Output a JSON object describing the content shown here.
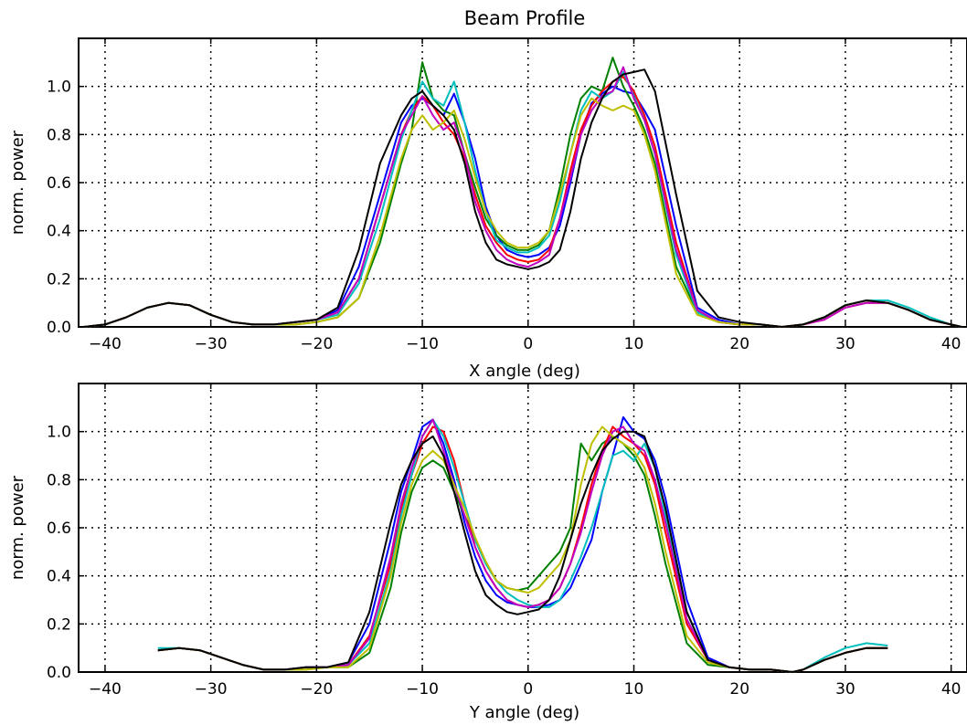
{
  "title": "Beam Profile",
  "colors": {
    "blue": "#0000ff",
    "green": "#008000",
    "red": "#ff0000",
    "cyan": "#00bfbf",
    "magenta": "#bf00bf",
    "yellow": "#bfbf00",
    "black": "#000000"
  },
  "chart_data": [
    {
      "type": "line",
      "title": "Beam Profile",
      "xlabel": "X angle (deg)",
      "ylabel": "norm. power",
      "xlim": [
        -42.5,
        41.5
      ],
      "ylim": [
        0,
        1.2
      ],
      "xticks": [
        -40,
        -30,
        -20,
        -10,
        0,
        10,
        20,
        30,
        40
      ],
      "xtick_labels": [
        "−40",
        "−30",
        "−20",
        "−10",
        "0",
        "10",
        "20",
        "30",
        "40"
      ],
      "yticks": [
        0.0,
        0.2,
        0.4,
        0.6,
        0.8,
        1.0
      ],
      "ytick_labels": [
        "0.0",
        "0.2",
        "0.4",
        "0.6",
        "0.8",
        "1.0"
      ],
      "grid": true,
      "x": [
        -42,
        -40,
        -38,
        -36,
        -34,
        -32,
        -30,
        -28,
        -26,
        -24,
        -22,
        -20,
        -18,
        -16,
        -14,
        -12,
        -11,
        -10,
        -9,
        -8,
        -7,
        -6,
        -5,
        -4,
        -3,
        -2,
        -1,
        0,
        1,
        2,
        3,
        4,
        5,
        6,
        7,
        8,
        9,
        10,
        11,
        12,
        14,
        16,
        18,
        20,
        22,
        24,
        26,
        28,
        30,
        32,
        34,
        36,
        38,
        40,
        41
      ],
      "series": [
        {
          "color": "blue",
          "values": [
            0.0,
            0.01,
            0.04,
            0.08,
            0.1,
            0.09,
            0.05,
            0.02,
            0.01,
            0.01,
            0.02,
            0.03,
            0.07,
            0.25,
            0.55,
            0.85,
            0.92,
            0.95,
            0.92,
            0.88,
            0.97,
            0.85,
            0.7,
            0.5,
            0.38,
            0.32,
            0.3,
            0.29,
            0.3,
            0.33,
            0.42,
            0.6,
            0.8,
            0.93,
            0.97,
            1.0,
            0.98,
            0.97,
            0.9,
            0.82,
            0.42,
            0.08,
            0.03,
            0.01,
            0.01,
            0.0,
            0.01,
            0.04,
            0.09,
            0.11,
            0.1,
            0.07,
            0.03,
            0.01,
            0.0
          ]
        },
        {
          "color": "green",
          "values": [
            0.0,
            0.01,
            0.04,
            0.08,
            0.1,
            0.09,
            0.05,
            0.02,
            0.01,
            0.01,
            0.01,
            0.02,
            0.04,
            0.12,
            0.35,
            0.68,
            0.82,
            1.1,
            0.95,
            0.9,
            0.88,
            0.72,
            0.58,
            0.45,
            0.38,
            0.34,
            0.32,
            0.32,
            0.34,
            0.4,
            0.58,
            0.8,
            0.95,
            1.0,
            0.98,
            1.12,
            1.0,
            0.92,
            0.82,
            0.68,
            0.25,
            0.06,
            0.02,
            0.01,
            0.01,
            0.0,
            0.01,
            0.04,
            0.09,
            0.11,
            0.1,
            0.07,
            0.03,
            0.01,
            0.0
          ]
        },
        {
          "color": "red",
          "values": [
            0.0,
            0.01,
            0.04,
            0.08,
            0.1,
            0.09,
            0.05,
            0.02,
            0.01,
            0.01,
            0.02,
            0.03,
            0.06,
            0.2,
            0.5,
            0.8,
            0.9,
            0.96,
            0.92,
            0.85,
            0.8,
            0.7,
            0.55,
            0.42,
            0.35,
            0.3,
            0.28,
            0.27,
            0.28,
            0.32,
            0.45,
            0.65,
            0.82,
            0.92,
            0.98,
            1.02,
            1.04,
            0.98,
            0.88,
            0.75,
            0.35,
            0.07,
            0.02,
            0.01,
            0.01,
            0.0,
            0.01,
            0.03,
            0.08,
            0.1,
            0.1,
            0.07,
            0.03,
            0.01,
            0.0
          ]
        },
        {
          "color": "cyan",
          "values": [
            0.0,
            0.01,
            0.04,
            0.08,
            0.1,
            0.09,
            0.05,
            0.02,
            0.01,
            0.01,
            0.02,
            0.03,
            0.05,
            0.18,
            0.45,
            0.78,
            0.9,
            1.02,
            0.95,
            0.92,
            1.02,
            0.85,
            0.65,
            0.48,
            0.36,
            0.33,
            0.31,
            0.31,
            0.33,
            0.38,
            0.52,
            0.72,
            0.9,
            0.98,
            0.95,
            0.98,
            1.06,
            0.96,
            0.86,
            0.72,
            0.3,
            0.06,
            0.02,
            0.01,
            0.01,
            0.0,
            0.01,
            0.04,
            0.09,
            0.11,
            0.11,
            0.08,
            0.04,
            0.01,
            0.0
          ]
        },
        {
          "color": "magenta",
          "values": [
            0.0,
            0.01,
            0.04,
            0.08,
            0.1,
            0.09,
            0.05,
            0.02,
            0.01,
            0.01,
            0.02,
            0.03,
            0.06,
            0.2,
            0.5,
            0.8,
            0.88,
            0.96,
            0.88,
            0.82,
            0.85,
            0.72,
            0.52,
            0.4,
            0.32,
            0.28,
            0.26,
            0.25,
            0.27,
            0.3,
            0.45,
            0.62,
            0.8,
            0.9,
            0.96,
            0.98,
            1.08,
            0.95,
            0.86,
            0.72,
            0.32,
            0.07,
            0.02,
            0.01,
            0.01,
            0.0,
            0.01,
            0.03,
            0.08,
            0.1,
            0.1,
            0.07,
            0.03,
            0.01,
            0.0
          ]
        },
        {
          "color": "yellow",
          "values": [
            0.0,
            0.01,
            0.04,
            0.08,
            0.1,
            0.09,
            0.05,
            0.02,
            0.01,
            0.01,
            0.01,
            0.02,
            0.04,
            0.12,
            0.38,
            0.7,
            0.82,
            0.88,
            0.82,
            0.85,
            0.9,
            0.78,
            0.62,
            0.48,
            0.4,
            0.35,
            0.33,
            0.33,
            0.35,
            0.4,
            0.55,
            0.72,
            0.88,
            0.95,
            0.92,
            0.9,
            0.92,
            0.9,
            0.8,
            0.65,
            0.22,
            0.05,
            0.02,
            0.01,
            0.01,
            0.0,
            0.01,
            0.04,
            0.09,
            0.11,
            0.1,
            0.07,
            0.03,
            0.01,
            0.0
          ]
        },
        {
          "color": "black",
          "values": [
            0.0,
            0.01,
            0.04,
            0.08,
            0.1,
            0.09,
            0.05,
            0.02,
            0.01,
            0.01,
            0.02,
            0.03,
            0.08,
            0.32,
            0.68,
            0.88,
            0.95,
            0.98,
            0.92,
            0.88,
            0.82,
            0.68,
            0.48,
            0.35,
            0.28,
            0.26,
            0.25,
            0.24,
            0.25,
            0.27,
            0.32,
            0.48,
            0.7,
            0.85,
            0.95,
            1.02,
            1.05,
            1.06,
            1.07,
            0.98,
            0.55,
            0.15,
            0.04,
            0.02,
            0.01,
            0.0,
            0.01,
            0.04,
            0.09,
            0.11,
            0.1,
            0.07,
            0.03,
            0.01,
            0.0
          ]
        }
      ]
    },
    {
      "type": "line",
      "xlabel": "Y angle (deg)",
      "ylabel": "norm. power",
      "xlim": [
        -42.5,
        41.5
      ],
      "ylim": [
        0,
        1.2
      ],
      "xticks": [
        -40,
        -30,
        -20,
        -10,
        0,
        10,
        20,
        30,
        40
      ],
      "xtick_labels": [
        "−40",
        "−30",
        "−20",
        "−10",
        "0",
        "10",
        "20",
        "30",
        "40"
      ],
      "yticks": [
        0.0,
        0.2,
        0.4,
        0.6,
        0.8,
        1.0
      ],
      "ytick_labels": [
        "0.0",
        "0.2",
        "0.4",
        "0.6",
        "0.8",
        "1.0"
      ],
      "grid": true,
      "x": [
        -35,
        -33,
        -31,
        -29,
        -27,
        -25,
        -23,
        -21,
        -19,
        -17,
        -15,
        -13,
        -12,
        -11,
        -10,
        -9,
        -8,
        -7,
        -6,
        -5,
        -4,
        -3,
        -2,
        -1,
        0,
        1,
        2,
        3,
        4,
        5,
        6,
        7,
        8,
        9,
        10,
        11,
        12,
        13,
        15,
        17,
        19,
        21,
        23,
        25,
        26,
        28,
        30,
        32,
        34
      ],
      "series": [
        {
          "color": "blue",
          "values": [
            0.09,
            0.1,
            0.09,
            0.06,
            0.03,
            0.01,
            0.01,
            0.02,
            0.02,
            0.04,
            0.2,
            0.55,
            0.75,
            0.88,
            1.02,
            1.05,
            0.95,
            0.8,
            0.62,
            0.48,
            0.38,
            0.32,
            0.29,
            0.28,
            0.27,
            0.27,
            0.28,
            0.3,
            0.35,
            0.45,
            0.55,
            0.75,
            0.9,
            1.06,
            1.0,
            0.97,
            0.88,
            0.72,
            0.3,
            0.06,
            0.02,
            0.01,
            0.01,
            0.0,
            0.01,
            0.05,
            0.08,
            0.1,
            0.1
          ]
        },
        {
          "color": "green",
          "values": [
            0.09,
            0.1,
            0.09,
            0.06,
            0.03,
            0.01,
            0.01,
            0.01,
            0.02,
            0.02,
            0.08,
            0.35,
            0.58,
            0.75,
            0.85,
            0.88,
            0.85,
            0.75,
            0.65,
            0.55,
            0.45,
            0.38,
            0.35,
            0.34,
            0.35,
            0.4,
            0.45,
            0.5,
            0.6,
            0.95,
            0.88,
            0.95,
            0.98,
            0.95,
            0.9,
            0.82,
            0.65,
            0.45,
            0.12,
            0.03,
            0.02,
            0.01,
            0.01,
            0.0,
            0.01,
            0.05,
            0.08,
            0.1,
            0.1
          ]
        },
        {
          "color": "red",
          "values": [
            0.09,
            0.1,
            0.09,
            0.06,
            0.03,
            0.01,
            0.01,
            0.02,
            0.02,
            0.03,
            0.15,
            0.45,
            0.68,
            0.82,
            0.95,
            1.02,
            1.0,
            0.88,
            0.7,
            0.52,
            0.42,
            0.35,
            0.3,
            0.28,
            0.27,
            0.28,
            0.3,
            0.35,
            0.45,
            0.6,
            0.78,
            0.92,
            1.02,
            0.98,
            0.95,
            0.9,
            0.78,
            0.58,
            0.2,
            0.05,
            0.02,
            0.01,
            0.01,
            0.0,
            0.01,
            0.05,
            0.08,
            0.1,
            0.1
          ]
        },
        {
          "color": "cyan",
          "values": [
            0.1,
            0.1,
            0.09,
            0.06,
            0.03,
            0.01,
            0.01,
            0.02,
            0.02,
            0.03,
            0.12,
            0.42,
            0.65,
            0.82,
            0.98,
            1.05,
            0.98,
            0.85,
            0.7,
            0.55,
            0.45,
            0.38,
            0.33,
            0.3,
            0.28,
            0.27,
            0.27,
            0.3,
            0.38,
            0.48,
            0.6,
            0.75,
            0.9,
            0.92,
            0.88,
            0.95,
            0.85,
            0.65,
            0.25,
            0.05,
            0.02,
            0.01,
            0.01,
            0.0,
            0.01,
            0.06,
            0.1,
            0.12,
            0.11
          ]
        },
        {
          "color": "magenta",
          "values": [
            0.09,
            0.1,
            0.09,
            0.06,
            0.03,
            0.01,
            0.01,
            0.02,
            0.02,
            0.03,
            0.14,
            0.48,
            0.7,
            0.85,
            0.98,
            1.05,
            0.92,
            0.78,
            0.65,
            0.52,
            0.42,
            0.35,
            0.3,
            0.28,
            0.27,
            0.28,
            0.3,
            0.35,
            0.45,
            0.58,
            0.75,
            0.9,
            1.0,
            1.02,
            0.95,
            0.92,
            0.8,
            0.62,
            0.22,
            0.05,
            0.02,
            0.01,
            0.01,
            0.0,
            0.01,
            0.05,
            0.08,
            0.1,
            0.1
          ]
        },
        {
          "color": "yellow",
          "values": [
            0.09,
            0.1,
            0.09,
            0.06,
            0.03,
            0.01,
            0.01,
            0.01,
            0.02,
            0.02,
            0.1,
            0.4,
            0.62,
            0.78,
            0.88,
            0.92,
            0.88,
            0.78,
            0.68,
            0.56,
            0.46,
            0.38,
            0.35,
            0.34,
            0.33,
            0.35,
            0.4,
            0.45,
            0.55,
            0.78,
            0.95,
            1.02,
            0.98,
            0.95,
            0.92,
            0.85,
            0.7,
            0.5,
            0.15,
            0.04,
            0.02,
            0.01,
            0.01,
            0.0,
            0.01,
            0.05,
            0.08,
            0.1,
            0.1
          ]
        },
        {
          "color": "black",
          "values": [
            0.09,
            0.1,
            0.09,
            0.06,
            0.03,
            0.01,
            0.01,
            0.02,
            0.02,
            0.04,
            0.25,
            0.62,
            0.78,
            0.88,
            0.95,
            0.98,
            0.9,
            0.75,
            0.58,
            0.42,
            0.32,
            0.28,
            0.25,
            0.24,
            0.25,
            0.26,
            0.3,
            0.4,
            0.55,
            0.7,
            0.82,
            0.92,
            0.97,
            1.0,
            1.0,
            0.98,
            0.85,
            0.68,
            0.25,
            0.05,
            0.02,
            0.01,
            0.01,
            0.0,
            0.01,
            0.05,
            0.08,
            0.1,
            0.1
          ]
        }
      ]
    }
  ]
}
